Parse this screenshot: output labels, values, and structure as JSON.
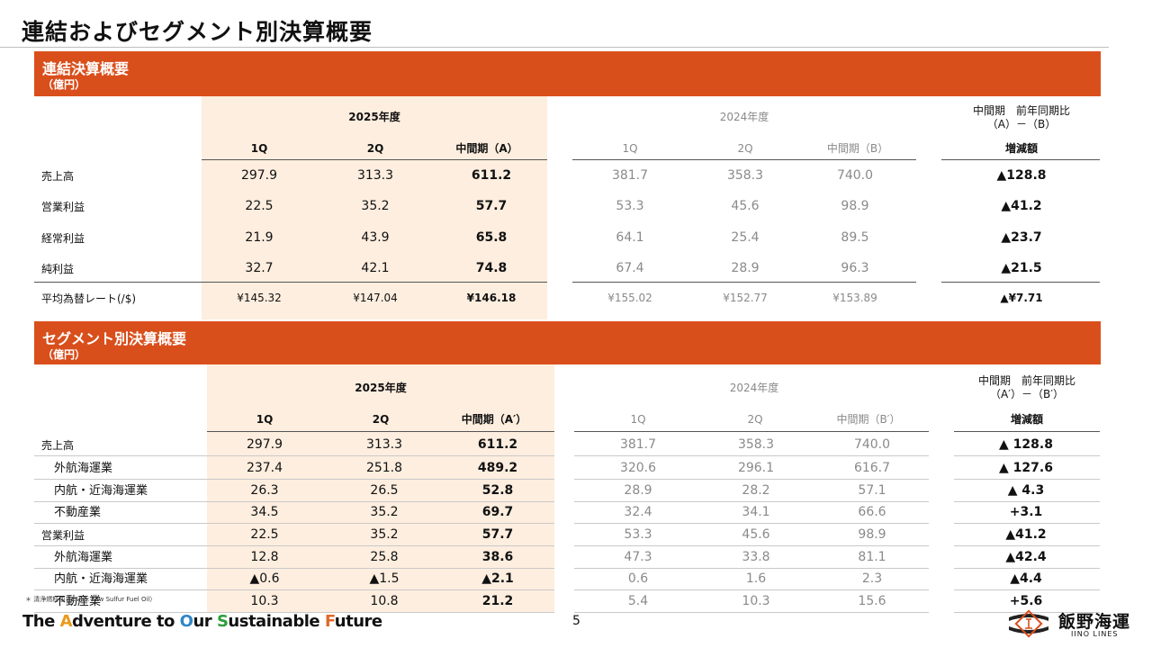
{
  "page_title": "連結およびセグメント別決算概要",
  "colors": {
    "accent": "#d94f1c",
    "highlight": "#fdeedf"
  },
  "section1": {
    "title": "連結決算概要",
    "unit": "（億円）",
    "fy2025": "2025年度",
    "fy2024": "2024年度",
    "cmp_line1": "中間期　前年同期比",
    "cmp_line2": "（A）－（B）",
    "col_q1": "1Q",
    "col_q2": "2Q",
    "col_mid_a": "中間期（A）",
    "col_q1b": "1Q",
    "col_q2b": "2Q",
    "col_mid_b": "中間期（B）",
    "col_diff": "増減額",
    "rows": [
      {
        "label": "売上高",
        "v": [
          "297.9",
          "313.3",
          "611.2",
          "381.7",
          "358.3",
          "740.0",
          "▲128.8"
        ]
      },
      {
        "label": "営業利益",
        "v": [
          "22.5",
          "35.2",
          "57.7",
          "53.3",
          "45.6",
          "98.9",
          "▲41.2"
        ]
      },
      {
        "label": "経常利益",
        "v": [
          "21.9",
          "43.9",
          "65.8",
          "64.1",
          "25.4",
          "89.5",
          "▲23.7"
        ]
      },
      {
        "label": "純利益",
        "v": [
          "32.7",
          "42.1",
          "74.8",
          "67.4",
          "28.9",
          "96.3",
          "▲21.5"
        ]
      },
      {
        "label": "平均為替レート(/$)",
        "v": [
          "¥145.32",
          "¥147.04",
          "¥146.18",
          "¥155.02",
          "¥152.77",
          "¥153.89",
          "▲¥7.71"
        ]
      }
    ]
  },
  "section2": {
    "title": "セグメント別決算概要",
    "unit": "（億円）",
    "fy2025": "2025年度",
    "fy2024": "2024年度",
    "cmp_line1": "中間期　前年同期比",
    "cmp_line2": "（A′）－（B′）",
    "col_q1": "1Q",
    "col_q2": "2Q",
    "col_mid_a": "中間期（A′）",
    "col_q1b": "1Q",
    "col_q2b": "2Q",
    "col_mid_b": "中間期（B′）",
    "col_diff": "増減額",
    "rows": [
      {
        "label": "売上高",
        "v": [
          "297.9",
          "313.3",
          "611.2",
          "381.7",
          "358.3",
          "740.0",
          "▲ 128.8"
        ]
      },
      {
        "label": "外航海運業",
        "v": [
          "237.4",
          "251.8",
          "489.2",
          "320.6",
          "296.1",
          "616.7",
          "▲ 127.6"
        ]
      },
      {
        "label": "内航・近海海運業",
        "v": [
          "26.3",
          "26.5",
          "52.8",
          "28.9",
          "28.2",
          "57.1",
          "▲ 4.3"
        ]
      },
      {
        "label": "不動産業",
        "v": [
          "34.5",
          "35.2",
          "69.7",
          "32.4",
          "34.1",
          "66.6",
          "+3.1"
        ]
      },
      {
        "label": "営業利益",
        "v": [
          "22.5",
          "35.2",
          "57.7",
          "53.3",
          "45.6",
          "98.9",
          "▲41.2"
        ]
      },
      {
        "label": "外航海運業",
        "v": [
          "12.8",
          "25.8",
          "38.6",
          "47.3",
          "33.8",
          "81.1",
          "▲42.4"
        ]
      },
      {
        "label": "内航・近海海運業",
        "v": [
          "▲0.6",
          "▲1.5",
          "▲2.1",
          "0.6",
          "1.6",
          "2.3",
          "▲4.4"
        ]
      },
      {
        "label": "不動産業",
        "v": [
          "10.3",
          "10.8",
          "21.2",
          "5.4",
          "10.3",
          "15.6",
          "+5.6"
        ]
      }
    ]
  },
  "footnote": "＊ 清浄燃料油（LSFO: Low Sulfur Fuel Oil）",
  "tagline": {
    "p1": "The ",
    "a": "A",
    "p2": "dventure to ",
    "o": "O",
    "p3": "ur ",
    "s": "S",
    "p4": "ustainable ",
    "f": "F",
    "p5": "uture"
  },
  "page_number": "5",
  "logo": {
    "name": "飯野海運",
    "sub": "IINO LINES"
  }
}
